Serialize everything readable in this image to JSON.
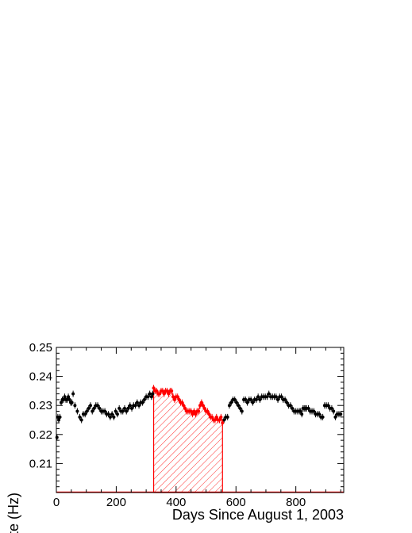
{
  "chart_data": {
    "type": "scatter",
    "xlabel": "Days Since August 1, 2003",
    "ylabel": "Rate (Hz)",
    "xlim": [
      0,
      960
    ],
    "ylim": [
      0.2,
      0.25
    ],
    "x_ticks": [
      "0",
      "200",
      "400",
      "600",
      "800"
    ],
    "y_ticks": [
      "0.21",
      "0.22",
      "0.23",
      "0.24",
      "0.25"
    ],
    "grid": false,
    "colors": {
      "black_series": "#000000",
      "red_series": "#ff0000",
      "hatch": "#ff0000"
    },
    "hatched_region": {
      "x_start": 325,
      "x_end": 555
    },
    "series": [
      {
        "color": "black",
        "x": [
          2,
          5,
          8,
          12,
          16,
          20,
          24,
          28,
          32,
          36,
          40,
          44,
          48,
          52,
          56,
          62,
          70,
          78,
          84,
          90,
          96,
          102,
          108,
          114,
          120,
          126,
          132,
          138,
          144,
          150,
          156,
          162,
          168,
          174,
          180,
          186,
          192,
          198,
          204,
          210,
          216,
          222,
          228,
          234,
          240,
          246,
          252,
          258,
          264,
          270,
          276,
          282,
          288,
          294,
          300,
          306,
          312,
          318,
          322,
          560,
          566,
          572,
          578,
          584,
          590,
          596,
          602,
          608,
          614,
          620,
          626,
          632,
          638,
          644,
          650,
          656,
          662,
          668,
          674,
          680,
          686,
          692,
          698,
          704,
          710,
          716,
          722,
          728,
          734,
          740,
          746,
          752,
          758,
          764,
          770,
          776,
          782,
          788,
          794,
          800,
          806,
          812,
          816,
          820,
          824,
          828,
          832,
          836,
          842,
          848,
          854,
          860,
          866,
          872,
          878,
          884,
          890,
          896,
          902,
          908,
          914,
          920,
          926,
          932,
          938,
          944,
          950
        ],
        "y": [
          0.219,
          0.226,
          0.225,
          0.226,
          0.231,
          0.232,
          0.232,
          0.233,
          0.232,
          0.232,
          0.233,
          0.232,
          0.231,
          0.231,
          0.234,
          0.23,
          0.228,
          0.226,
          0.225,
          0.227,
          0.227,
          0.228,
          0.229,
          0.23,
          0.228,
          0.229,
          0.23,
          0.23,
          0.229,
          0.228,
          0.228,
          0.228,
          0.227,
          0.227,
          0.226,
          0.227,
          0.226,
          0.228,
          0.227,
          0.229,
          0.228,
          0.228,
          0.229,
          0.228,
          0.229,
          0.23,
          0.229,
          0.23,
          0.23,
          0.231,
          0.23,
          0.231,
          0.231,
          0.232,
          0.233,
          0.233,
          0.234,
          0.233,
          0.234,
          0.225,
          0.226,
          0.226,
          0.23,
          0.231,
          0.232,
          0.232,
          0.231,
          0.23,
          0.229,
          0.228,
          0.232,
          0.232,
          0.231,
          0.232,
          0.232,
          0.231,
          0.232,
          0.232,
          0.233,
          0.232,
          0.233,
          0.233,
          0.233,
          0.233,
          0.234,
          0.233,
          0.233,
          0.233,
          0.233,
          0.232,
          0.233,
          0.233,
          0.232,
          0.232,
          0.231,
          0.23,
          0.23,
          0.229,
          0.228,
          0.228,
          0.228,
          0.228,
          0.228,
          0.227,
          0.229,
          0.229,
          0.229,
          0.229,
          0.229,
          0.228,
          0.228,
          0.228,
          0.227,
          0.227,
          0.227,
          0.226,
          0.226,
          0.23,
          0.23,
          0.23,
          0.229,
          0.229,
          0.228,
          0.226,
          0.227,
          0.227,
          0.227
        ]
      },
      {
        "color": "red",
        "x": [
          325,
          330,
          335,
          340,
          345,
          350,
          355,
          360,
          365,
          370,
          375,
          380,
          385,
          390,
          395,
          400,
          405,
          410,
          415,
          420,
          425,
          430,
          435,
          440,
          445,
          450,
          455,
          460,
          465,
          470,
          475,
          480,
          485,
          490,
          495,
          500,
          505,
          510,
          515,
          520,
          525,
          530,
          535,
          540,
          545,
          550,
          555
        ],
        "y": [
          0.236,
          0.235,
          0.235,
          0.234,
          0.234,
          0.235,
          0.235,
          0.234,
          0.235,
          0.235,
          0.234,
          0.235,
          0.235,
          0.233,
          0.232,
          0.233,
          0.233,
          0.232,
          0.231,
          0.231,
          0.23,
          0.229,
          0.228,
          0.228,
          0.228,
          0.228,
          0.227,
          0.228,
          0.227,
          0.228,
          0.228,
          0.23,
          0.231,
          0.23,
          0.229,
          0.228,
          0.228,
          0.227,
          0.226,
          0.226,
          0.225,
          0.225,
          0.226,
          0.225,
          0.225,
          0.226,
          0.224
        ]
      }
    ]
  }
}
